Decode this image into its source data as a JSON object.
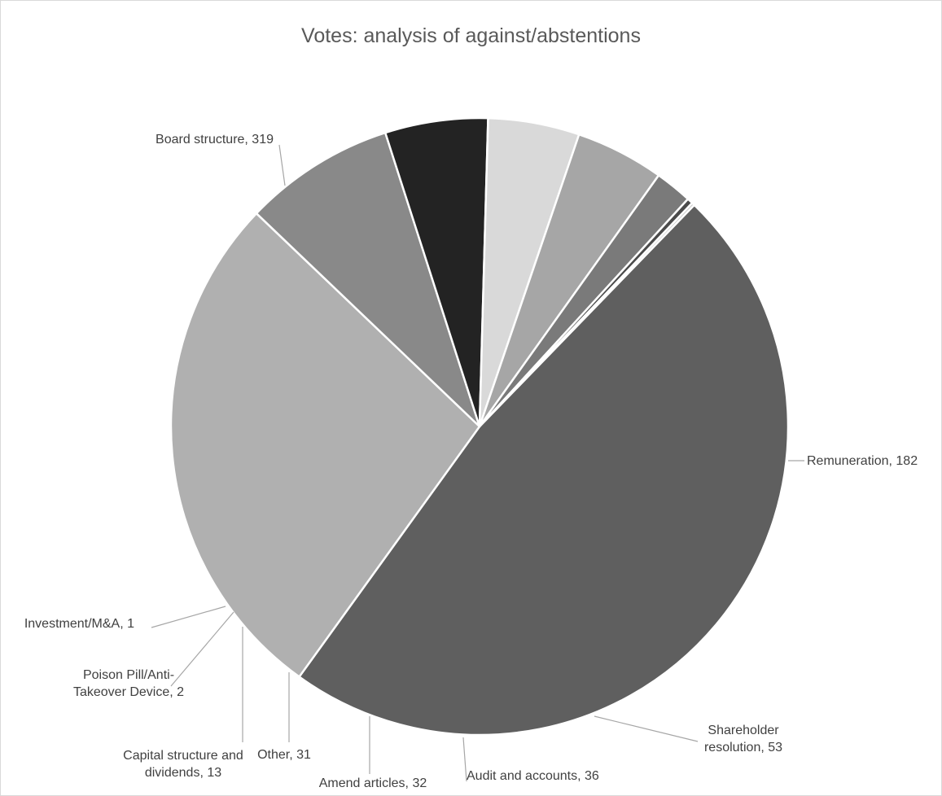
{
  "chart_data": {
    "type": "pie",
    "title": "Votes: analysis of against/abstentions",
    "slices": [
      {
        "name": "Board structure",
        "value": 319,
        "color": "#5f5f5f",
        "label": [
          "Board structure, 319"
        ]
      },
      {
        "name": "Remuneration",
        "value": 182,
        "color": "#b0b0b0",
        "label": [
          "Remuneration, 182"
        ]
      },
      {
        "name": "Shareholder resolution",
        "value": 53,
        "color": "#898989",
        "label": [
          "Shareholder",
          "resolution, 53"
        ]
      },
      {
        "name": "Audit and accounts",
        "value": 36,
        "color": "#232323",
        "label": [
          "Audit and accounts, 36"
        ]
      },
      {
        "name": "Amend articles",
        "value": 32,
        "color": "#d9d9d9",
        "label": [
          "Amend articles, 32"
        ]
      },
      {
        "name": "Other",
        "value": 31,
        "color": "#a6a6a6",
        "label": [
          "Other, 31"
        ]
      },
      {
        "name": "Capital structure and dividends",
        "value": 13,
        "color": "#7a7a7a",
        "label": [
          "Capital structure and",
          "dividends, 13"
        ]
      },
      {
        "name": "Poison Pill/Anti-Takeover Device",
        "value": 2,
        "color": "#4a4a4a",
        "label": [
          "Poison Pill/Anti-",
          "Takeover Device, 2"
        ]
      },
      {
        "name": "Investment/M&A",
        "value": 1,
        "color": "#c8c8c8",
        "label": [
          "Investment/M&A, 1"
        ]
      }
    ],
    "legend": "none",
    "data_labels": "outside with leader lines"
  }
}
